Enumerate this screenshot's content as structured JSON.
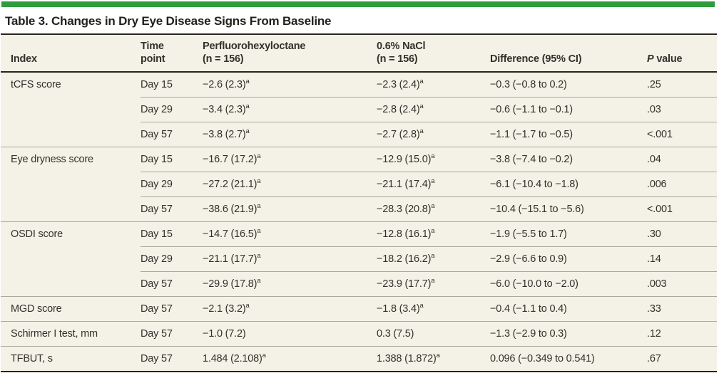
{
  "accent_color": "#2e9b3d",
  "background_color": "#f4f1e7",
  "rule_color": "#26241e",
  "separator_color": "#aaa99d",
  "title": "Table 3. Changes in Dry Eye Disease Signs From Baseline",
  "table": {
    "columns": {
      "index": "Index",
      "time": "Time\npoint",
      "pfh": "Perfluorohexyloctane\n(n = 156)",
      "nacl": "0.6% NaCl\n(n = 156)",
      "diff": "Difference (95% CI)",
      "p_italic": "P",
      "p_rest": " value"
    },
    "rows": [
      {
        "index": "tCFS score",
        "group_start": true,
        "time": "Day 15",
        "pfh": "−2.6 (2.3)",
        "pfh_sup": "a",
        "nacl": "−2.3 (2.4)",
        "nacl_sup": "a",
        "diff": "−0.3 (−0.8 to 0.2)",
        "p": ".25"
      },
      {
        "index": "",
        "group_start": false,
        "time": "Day 29",
        "pfh": "−3.4 (2.3)",
        "pfh_sup": "a",
        "nacl": "−2.8 (2.4)",
        "nacl_sup": "a",
        "diff": "−0.6 (−1.1 to −0.1)",
        "p": ".03"
      },
      {
        "index": "",
        "group_start": false,
        "time": "Day 57",
        "pfh": "−3.8 (2.7)",
        "pfh_sup": "a",
        "nacl": "−2.7 (2.8)",
        "nacl_sup": "a",
        "diff": "−1.1 (−1.7 to −0.5)",
        "p": "<.001"
      },
      {
        "index": "Eye dryness score",
        "group_start": true,
        "time": "Day 15",
        "pfh": "−16.7 (17.2)",
        "pfh_sup": "a",
        "nacl": "−12.9 (15.0)",
        "nacl_sup": "a",
        "diff": "−3.8 (−7.4 to −0.2)",
        "p": ".04"
      },
      {
        "index": "",
        "group_start": false,
        "time": "Day 29",
        "pfh": "−27.2 (21.1)",
        "pfh_sup": "a",
        "nacl": "−21.1 (17.4)",
        "nacl_sup": "a",
        "diff": "−6.1 (−10.4 to −1.8)",
        "p": ".006"
      },
      {
        "index": "",
        "group_start": false,
        "time": "Day 57",
        "pfh": "−38.6 (21.9)",
        "pfh_sup": "a",
        "nacl": "−28.3 (20.8)",
        "nacl_sup": "a",
        "diff": "−10.4 (−15.1 to −5.6)",
        "p": "<.001"
      },
      {
        "index": "OSDI score",
        "group_start": true,
        "time": "Day 15",
        "pfh": "−14.7 (16.5)",
        "pfh_sup": "a",
        "nacl": "−12.8 (16.1)",
        "nacl_sup": "a",
        "diff": "−1.9 (−5.5 to 1.7)",
        "p": ".30"
      },
      {
        "index": "",
        "group_start": false,
        "time": "Day 29",
        "pfh": "−21.1 (17.7)",
        "pfh_sup": "a",
        "nacl": "−18.2 (16.2)",
        "nacl_sup": "a",
        "diff": "−2.9 (−6.6 to 0.9)",
        "p": ".14"
      },
      {
        "index": "",
        "group_start": false,
        "time": "Day 57",
        "pfh": "−29.9 (17.8)",
        "pfh_sup": "a",
        "nacl": "−23.9 (17.7)",
        "nacl_sup": "a",
        "diff": "−6.0 (−10.0 to −2.0)",
        "p": ".003"
      },
      {
        "index": "MGD score",
        "group_start": true,
        "time": "Day 57",
        "pfh": "−2.1 (3.2)",
        "pfh_sup": "a",
        "nacl": "−1.8 (3.4)",
        "nacl_sup": "a",
        "diff": "−0.4 (−1.1 to 0.4)",
        "p": ".33"
      },
      {
        "index": "Schirmer I test, mm",
        "group_start": true,
        "time": "Day 57",
        "pfh": "−1.0 (7.2)",
        "pfh_sup": "",
        "nacl": "0.3 (7.5)",
        "nacl_sup": "",
        "diff": "−1.3 (−2.9 to 0.3)",
        "p": ".12"
      },
      {
        "index": "TFBUT, s",
        "group_start": true,
        "time": "Day 57",
        "pfh": "1.484 (2.108)",
        "pfh_sup": "a",
        "nacl": "1.388 (1.872)",
        "nacl_sup": "a",
        "diff": "0.096 (−0.349 to 0.541)",
        "p": ".67"
      }
    ]
  },
  "chart_data": {
    "type": "table",
    "title": "Table 3. Changes in Dry Eye Disease Signs From Baseline",
    "columns": [
      "Index",
      "Time point",
      "Perfluorohexyloctane (n = 156)",
      "0.6% NaCl (n = 156)",
      "Difference (95% CI)",
      "P value"
    ],
    "rows": [
      [
        "tCFS score",
        "Day 15",
        "−2.6 (2.3)a",
        "−2.3 (2.4)a",
        "−0.3 (−0.8 to 0.2)",
        ".25"
      ],
      [
        "tCFS score",
        "Day 29",
        "−3.4 (2.3)a",
        "−2.8 (2.4)a",
        "−0.6 (−1.1 to −0.1)",
        ".03"
      ],
      [
        "tCFS score",
        "Day 57",
        "−3.8 (2.7)a",
        "−2.7 (2.8)a",
        "−1.1 (−1.7 to −0.5)",
        "<.001"
      ],
      [
        "Eye dryness score",
        "Day 15",
        "−16.7 (17.2)a",
        "−12.9 (15.0)a",
        "−3.8 (−7.4 to −0.2)",
        ".04"
      ],
      [
        "Eye dryness score",
        "Day 29",
        "−27.2 (21.1)a",
        "−21.1 (17.4)a",
        "−6.1 (−10.4 to −1.8)",
        ".006"
      ],
      [
        "Eye dryness score",
        "Day 57",
        "−38.6 (21.9)a",
        "−28.3 (20.8)a",
        "−10.4 (−15.1 to −5.6)",
        "<.001"
      ],
      [
        "OSDI score",
        "Day 15",
        "−14.7 (16.5)a",
        "−12.8 (16.1)a",
        "−1.9 (−5.5 to 1.7)",
        ".30"
      ],
      [
        "OSDI score",
        "Day 29",
        "−21.1 (17.7)a",
        "−18.2 (16.2)a",
        "−2.9 (−6.6 to 0.9)",
        ".14"
      ],
      [
        "OSDI score",
        "Day 57",
        "−29.9 (17.8)a",
        "−23.9 (17.7)a",
        "−6.0 (−10.0 to −2.0)",
        ".003"
      ],
      [
        "MGD score",
        "Day 57",
        "−2.1 (3.2)a",
        "−1.8 (3.4)a",
        "−0.4 (−1.1 to 0.4)",
        ".33"
      ],
      [
        "Schirmer I test, mm",
        "Day 57",
        "−1.0 (7.2)",
        "0.3 (7.5)",
        "−1.3 (−2.9 to 0.3)",
        ".12"
      ],
      [
        "TFBUT, s",
        "Day 57",
        "1.484 (2.108)a",
        "1.388 (1.872)a",
        "0.096 (−0.349 to 0.541)",
        ".67"
      ]
    ]
  }
}
